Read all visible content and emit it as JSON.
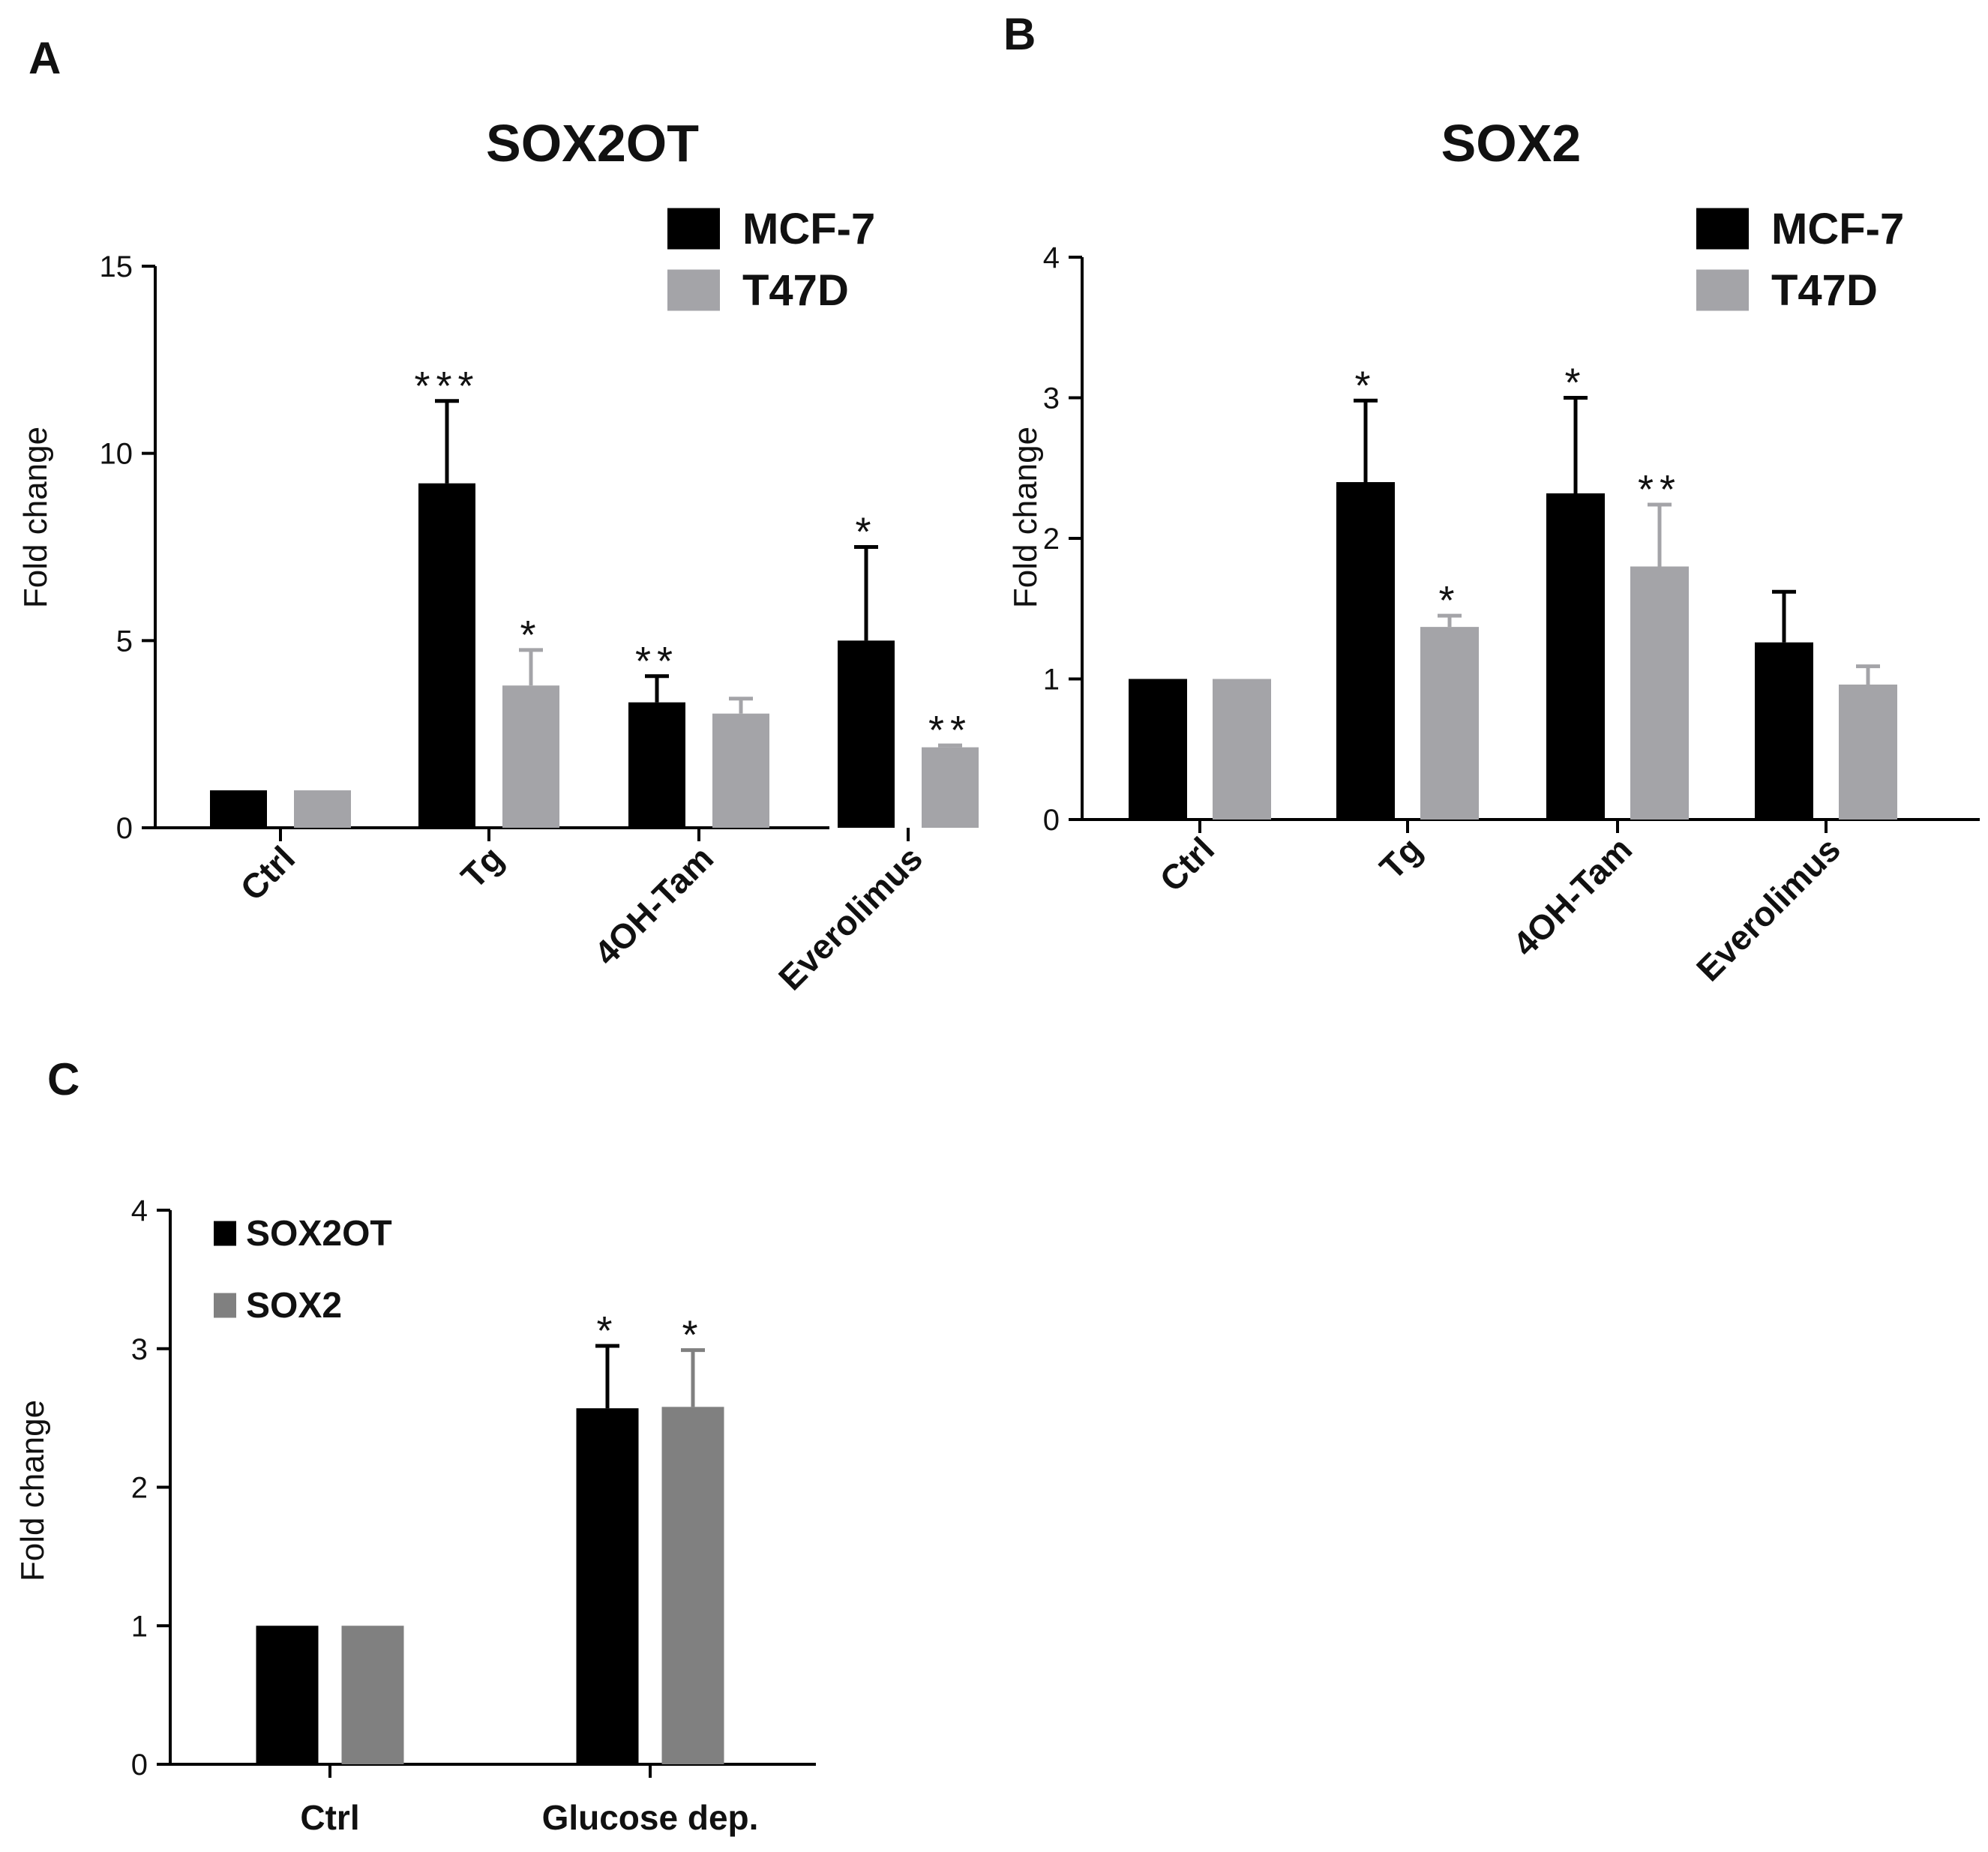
{
  "chart_data": [
    {
      "panel": "A",
      "type": "bar",
      "title": "SOX2OT",
      "xlabel": "",
      "ylabel": "Fold change",
      "ylim": [
        0,
        15
      ],
      "yticks": [
        "0",
        "5",
        "10",
        "15"
      ],
      "categories": [
        "Ctrl",
        "Tg",
        "4OH-Tam",
        "Everolimus"
      ],
      "legend_position": "top-right",
      "series": [
        {
          "name": "MCF-7",
          "color": "#000000",
          "values": [
            1.0,
            9.2,
            3.35,
            5.0
          ],
          "errors": [
            0,
            2.2,
            0.7,
            2.5
          ],
          "significance": [
            "",
            "***",
            "**",
            "*"
          ]
        },
        {
          "name": "T47D",
          "color": "#a4a4a8",
          "values": [
            1.0,
            3.8,
            3.05,
            2.15
          ],
          "errors": [
            0,
            0.95,
            0.4,
            0.05
          ],
          "significance": [
            "",
            "*",
            "",
            "**"
          ]
        }
      ]
    },
    {
      "panel": "B",
      "type": "bar",
      "title": "SOX2",
      "xlabel": "",
      "ylabel": "Fold change",
      "ylim": [
        0,
        4
      ],
      "yticks": [
        "0",
        "1",
        "2",
        "3",
        "4"
      ],
      "categories": [
        "Ctrl",
        "Tg",
        "4OH-Tam",
        "Everolimus"
      ],
      "legend_position": "top-right",
      "series": [
        {
          "name": "MCF-7",
          "color": "#000000",
          "values": [
            1.0,
            2.4,
            2.32,
            1.26
          ],
          "errors": [
            0,
            0.58,
            0.68,
            0.36
          ],
          "significance": [
            "",
            "*",
            "*",
            ""
          ]
        },
        {
          "name": "T47D",
          "color": "#a4a4a8",
          "values": [
            1.0,
            1.37,
            1.8,
            0.96
          ],
          "errors": [
            0,
            0.08,
            0.44,
            0.13
          ],
          "significance": [
            "",
            "*",
            "**",
            ""
          ]
        }
      ]
    },
    {
      "panel": "C",
      "type": "bar",
      "title": "",
      "xlabel": "",
      "ylabel": "Fold change",
      "ylim": [
        0,
        4
      ],
      "yticks": [
        "0",
        "1",
        "2",
        "3",
        "4"
      ],
      "categories": [
        "Ctrl",
        "Glucose dep."
      ],
      "legend_position": "top-left",
      "series": [
        {
          "name": "SOX2OT",
          "color": "#000000",
          "values": [
            1.0,
            2.57
          ],
          "errors": [
            0,
            0.45
          ],
          "significance": [
            "",
            "*"
          ]
        },
        {
          "name": "SOX2",
          "color": "#808080",
          "values": [
            1.0,
            2.58
          ],
          "errors": [
            0,
            0.41
          ],
          "significance": [
            "",
            "*"
          ]
        }
      ]
    }
  ]
}
